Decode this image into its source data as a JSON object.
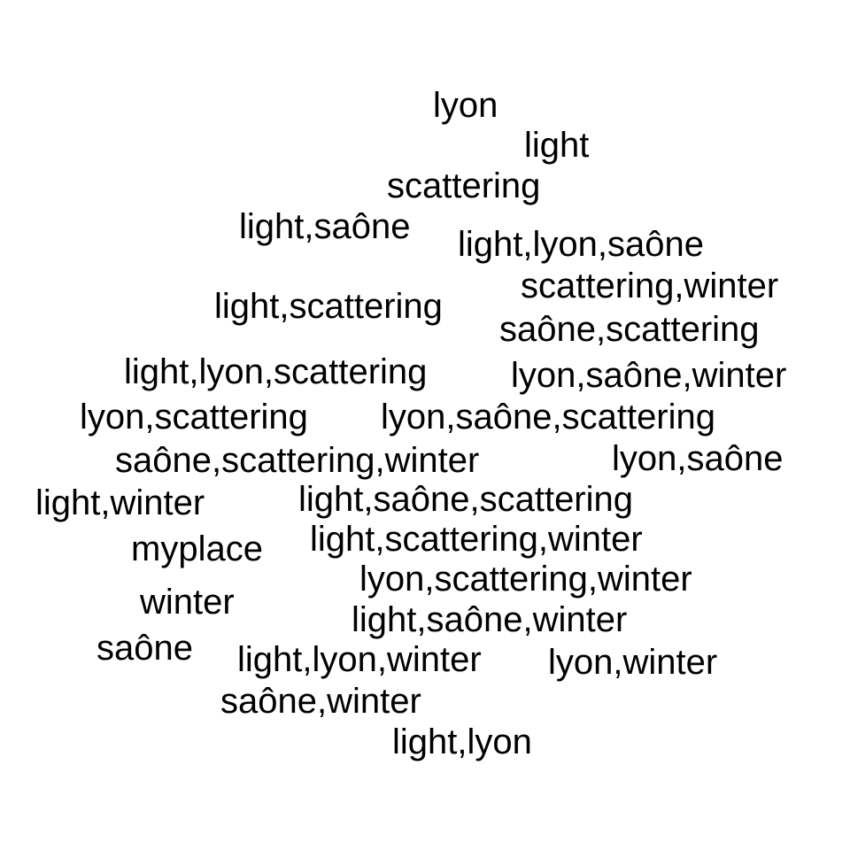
{
  "text_color": "#000000",
  "background_color": "#ffffff",
  "words": [
    "lyon",
    "light",
    "scattering",
    "light,saône",
    "light,lyon,saône",
    "scattering,winter",
    "light,scattering",
    "saône,scattering",
    "light,lyon,scattering",
    "lyon,saône,winter",
    "lyon,scattering",
    "lyon,saône,scattering",
    "saône,scattering,winter",
    "lyon,saône",
    "light,winter",
    "light,saône,scattering",
    "myplace",
    "light,scattering,winter",
    "lyon,scattering,winter",
    "winter",
    "light,saône,winter",
    "saône",
    "light,lyon,winter",
    "lyon,winter",
    "saône,winter",
    "light,lyon"
  ]
}
